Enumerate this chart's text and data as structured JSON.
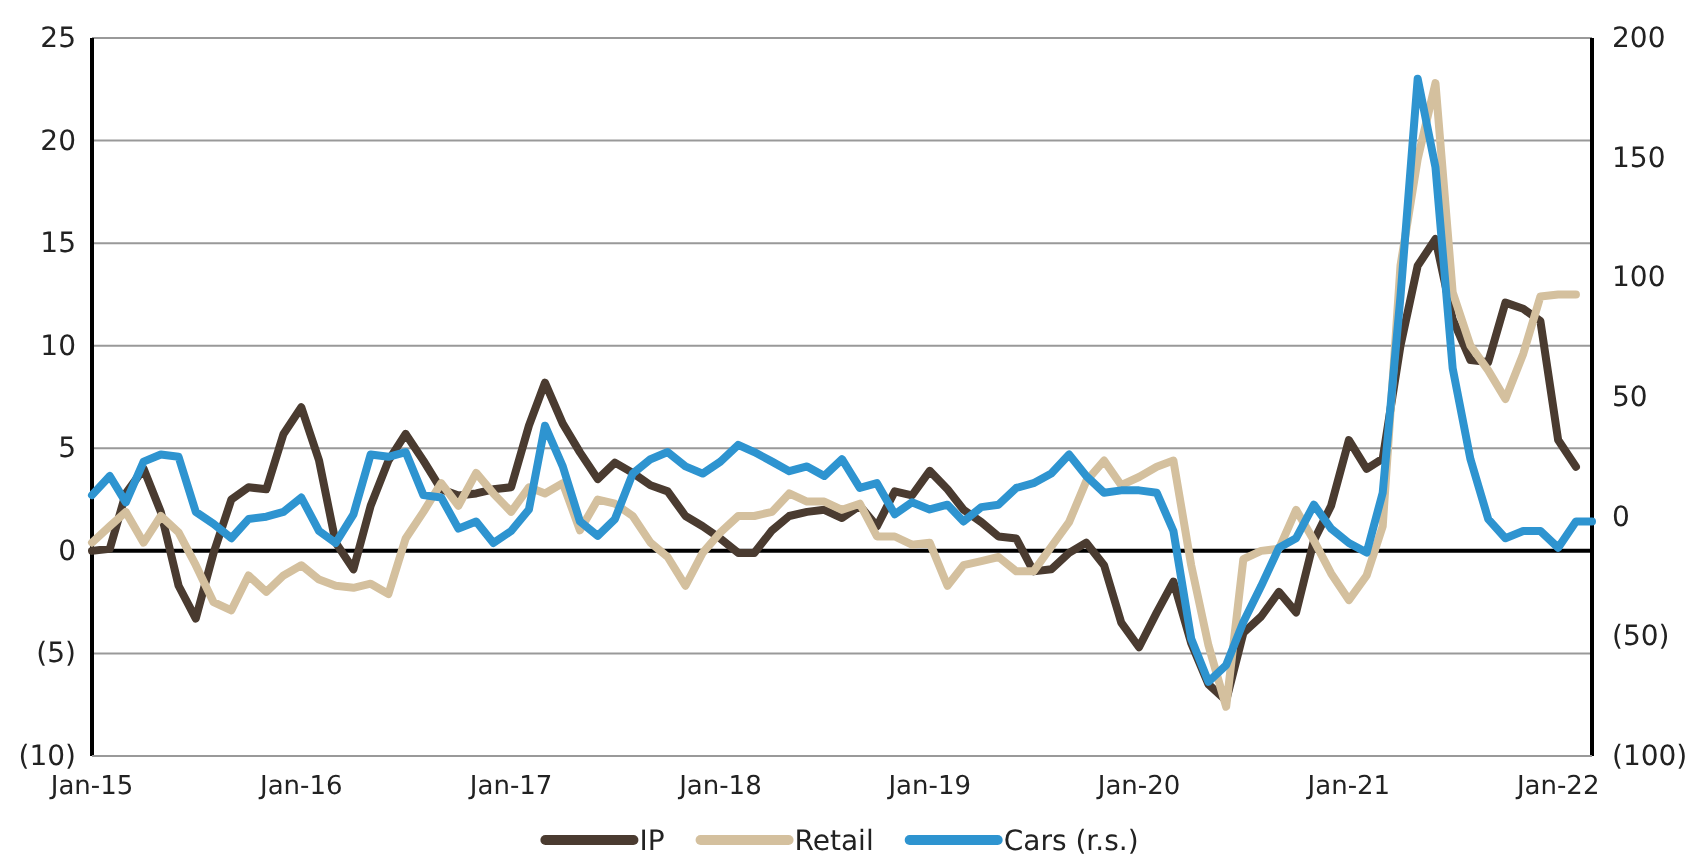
{
  "chart_data": {
    "type": "line",
    "x": [
      "2015-01",
      "2015-02",
      "2015-03",
      "2015-04",
      "2015-05",
      "2015-06",
      "2015-07",
      "2015-08",
      "2015-09",
      "2015-10",
      "2015-11",
      "2015-12",
      "2016-01",
      "2016-02",
      "2016-03",
      "2016-04",
      "2016-05",
      "2016-06",
      "2016-07",
      "2016-08",
      "2016-09",
      "2016-10",
      "2016-11",
      "2016-12",
      "2017-01",
      "2017-02",
      "2017-03",
      "2017-04",
      "2017-05",
      "2017-06",
      "2017-07",
      "2017-08",
      "2017-09",
      "2017-10",
      "2017-11",
      "2017-12",
      "2018-01",
      "2018-02",
      "2018-03",
      "2018-04",
      "2018-05",
      "2018-06",
      "2018-07",
      "2018-08",
      "2018-09",
      "2018-10",
      "2018-11",
      "2018-12",
      "2019-01",
      "2019-02",
      "2019-03",
      "2019-04",
      "2019-05",
      "2019-06",
      "2019-07",
      "2019-08",
      "2019-09",
      "2019-10",
      "2019-11",
      "2019-12",
      "2020-01",
      "2020-02",
      "2020-03",
      "2020-04",
      "2020-05",
      "2020-06",
      "2020-07",
      "2020-08",
      "2020-09",
      "2020-10",
      "2020-11",
      "2020-12",
      "2021-01",
      "2021-02",
      "2021-03",
      "2021-04",
      "2021-05",
      "2021-06",
      "2021-07",
      "2021-08",
      "2021-09",
      "2021-10",
      "2021-11",
      "2021-12",
      "2022-01",
      "2022-02",
      "2022-03"
    ],
    "series": [
      {
        "name": "IP",
        "color": "#4a3b30",
        "values": [
          0,
          0.1,
          2.8,
          4,
          1.9,
          -1.7,
          -3.3,
          -0.1,
          2.5,
          3.1,
          3,
          5.7,
          7,
          4.4,
          0.4,
          -0.9,
          2.2,
          4.4,
          5.7,
          4.4,
          3,
          2.7,
          2.8,
          3,
          3.1,
          6.1,
          8.2,
          6.2,
          4.8,
          3.5,
          4.3,
          3.8,
          3.2,
          2.9,
          1.7,
          1.2,
          0.6,
          -0.1,
          -0.1,
          1,
          1.7,
          1.9,
          2,
          1.6,
          2.2,
          1.2,
          2.9,
          2.7,
          3.9,
          3,
          2,
          1.4,
          0.7,
          0.6,
          -1,
          -0.9,
          -0.1,
          0.4,
          -0.7,
          -3.5,
          -4.7,
          -3,
          -1.5,
          -4.5,
          -6.5,
          -7.3,
          -4,
          -3.2,
          -2,
          -3,
          0.5,
          2.2,
          5.4,
          4,
          4.5,
          10,
          13.9,
          15.2,
          11.3,
          9.3,
          9.2,
          12.1,
          11.8,
          11.2,
          5.4,
          4.1,
          null
        ]
      },
      {
        "name": "Retail",
        "color": "#d4c09e",
        "values": [
          0.4,
          1.2,
          1.9,
          0.4,
          1.7,
          0.9,
          -0.7,
          -2.5,
          -2.9,
          -1.2,
          -2,
          -1.2,
          -0.7,
          -1.4,
          -1.7,
          -1.8,
          -1.6,
          -2.1,
          0.6,
          1.9,
          3.3,
          2.2,
          3.8,
          2.8,
          1.9,
          3.1,
          2.8,
          3.3,
          1,
          2.5,
          2.3,
          1.7,
          0.4,
          -0.3,
          -1.7,
          -0.1,
          0.9,
          1.7,
          1.7,
          1.9,
          2.8,
          2.4,
          2.4,
          2,
          2.3,
          0.7,
          0.7,
          0.3,
          0.4,
          -1.7,
          -0.7,
          -0.5,
          -0.3,
          -1,
          -1,
          0.2,
          1.4,
          3.4,
          4.4,
          3.2,
          3.6,
          4.1,
          4.4,
          -0.7,
          -4.6,
          -7.6,
          -0.4,
          0,
          0.1,
          2,
          0.5,
          -1.1,
          -2.4,
          -1.2,
          1.2,
          13.9,
          19.1,
          22.8,
          12.6,
          10,
          8.8,
          7.4,
          9.6,
          12.4,
          12.5,
          12.5,
          null
        ]
      },
      {
        "name": "Cars (r.s.)",
        "color": "#2e94d0",
        "axis": "y2",
        "values": [
          9,
          17,
          6,
          23,
          26,
          25,
          2,
          -3,
          -9,
          -1,
          0,
          2,
          8,
          -6,
          -11,
          1,
          26,
          25,
          27,
          9,
          8,
          -5,
          -2,
          -11,
          -6,
          3,
          38,
          21,
          -2,
          -8,
          -1,
          18,
          24,
          27,
          21,
          18,
          23,
          30,
          27,
          23,
          19,
          21,
          17,
          24,
          12,
          14,
          1,
          6,
          3,
          5,
          -2,
          4,
          5,
          12,
          14,
          18,
          26,
          17,
          10,
          11,
          11,
          10,
          -6,
          -51,
          -69,
          -62,
          -44,
          -29,
          -13,
          -9,
          5,
          -5,
          -11,
          -15,
          10,
          92,
          183,
          146,
          62,
          24,
          -1,
          -9,
          -6,
          -6,
          -13,
          -2,
          -2
        ]
      }
    ],
    "xlim": [
      "2015-01",
      "2022-03"
    ],
    "xticks": [
      {
        "value": "2015-01",
        "label": "Jan-15"
      },
      {
        "value": "2016-01",
        "label": "Jan-16"
      },
      {
        "value": "2017-01",
        "label": "Jan-17"
      },
      {
        "value": "2018-01",
        "label": "Jan-18"
      },
      {
        "value": "2019-01",
        "label": "Jan-19"
      },
      {
        "value": "2020-01",
        "label": "Jan-20"
      },
      {
        "value": "2021-01",
        "label": "Jan-21"
      },
      {
        "value": "2022-01",
        "label": "Jan-22"
      }
    ],
    "ylim": [
      -10,
      25
    ],
    "yticks": [
      {
        "value": -10,
        "label": "(10)"
      },
      {
        "value": -5,
        "label": "(5)"
      },
      0,
      5,
      10,
      15,
      20,
      25
    ],
    "y2lim": [
      -100,
      200
    ],
    "y2ticks": [
      {
        "value": -100,
        "label": "(100)"
      },
      {
        "value": -50,
        "label": "(50)"
      },
      0,
      50,
      100,
      150,
      200
    ],
    "ref_lines": [
      {
        "axis": "y",
        "value": 0,
        "color": "#000000"
      }
    ],
    "grid": "y",
    "legend": "bottom"
  }
}
